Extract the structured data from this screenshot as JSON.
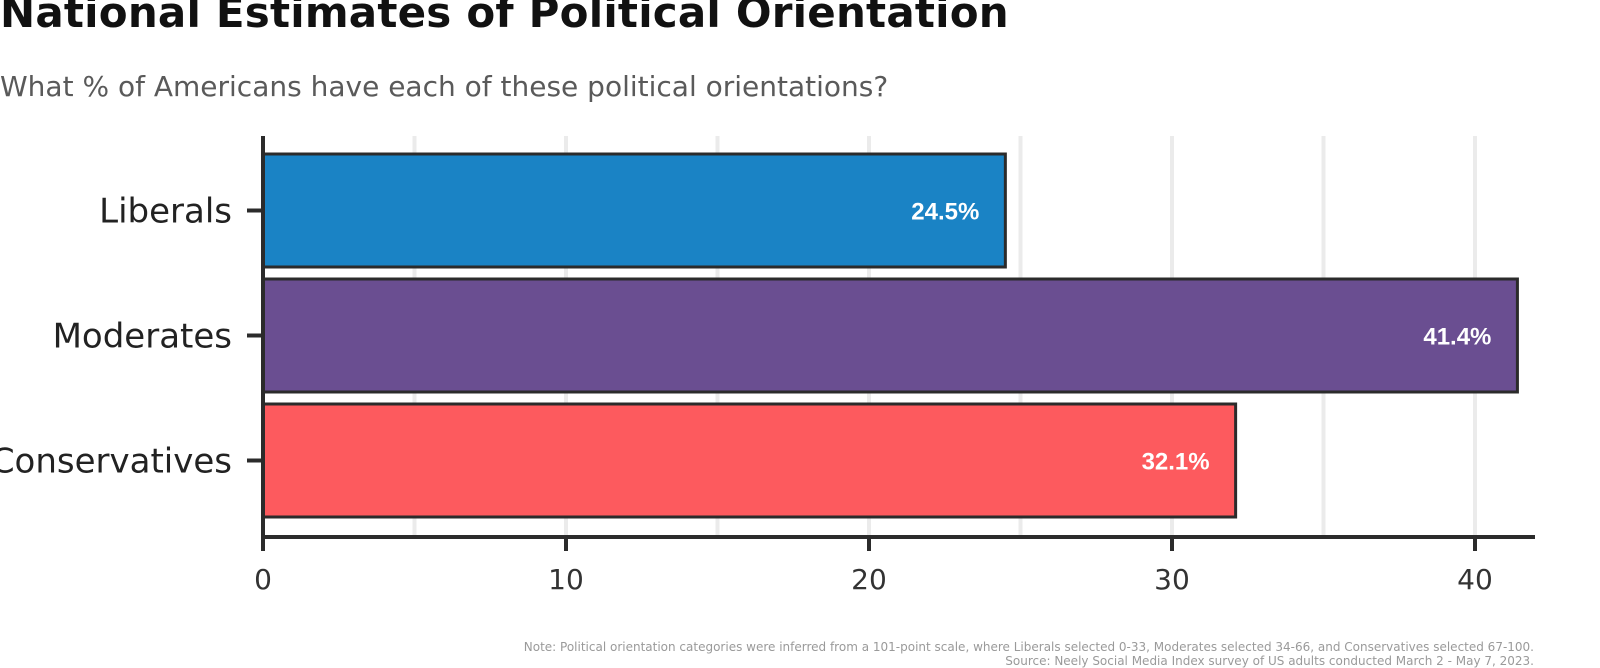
{
  "chart_data": {
    "type": "bar",
    "orientation": "horizontal",
    "title": "National Estimates of Political Orientation",
    "subtitle": "What % of Americans have each of these political orientations?",
    "categories": [
      "Liberals",
      "Moderates",
      "Conservatives"
    ],
    "values": [
      24.5,
      41.4,
      32.1
    ],
    "value_labels": [
      "24.5%",
      "41.4%",
      "32.1%"
    ],
    "colors": [
      "#1a83c5",
      "#6a4e91",
      "#fd5a5e"
    ],
    "xlim": [
      0,
      42
    ],
    "xticks": [
      0,
      10,
      20,
      30,
      40
    ],
    "xtick_labels": [
      "0",
      "10",
      "20",
      "30",
      "40"
    ],
    "xlabel": "",
    "ylabel": "",
    "grid": true,
    "note": "Note: Political orientation categories were inferred from a 101-point scale, where Liberals selected 0-33, Moderates selected 34-66, and Conservatives selected 67-100.",
    "source": "Source: Neely Social Media Index survey of US adults conducted March 2 - May 7, 2023."
  }
}
